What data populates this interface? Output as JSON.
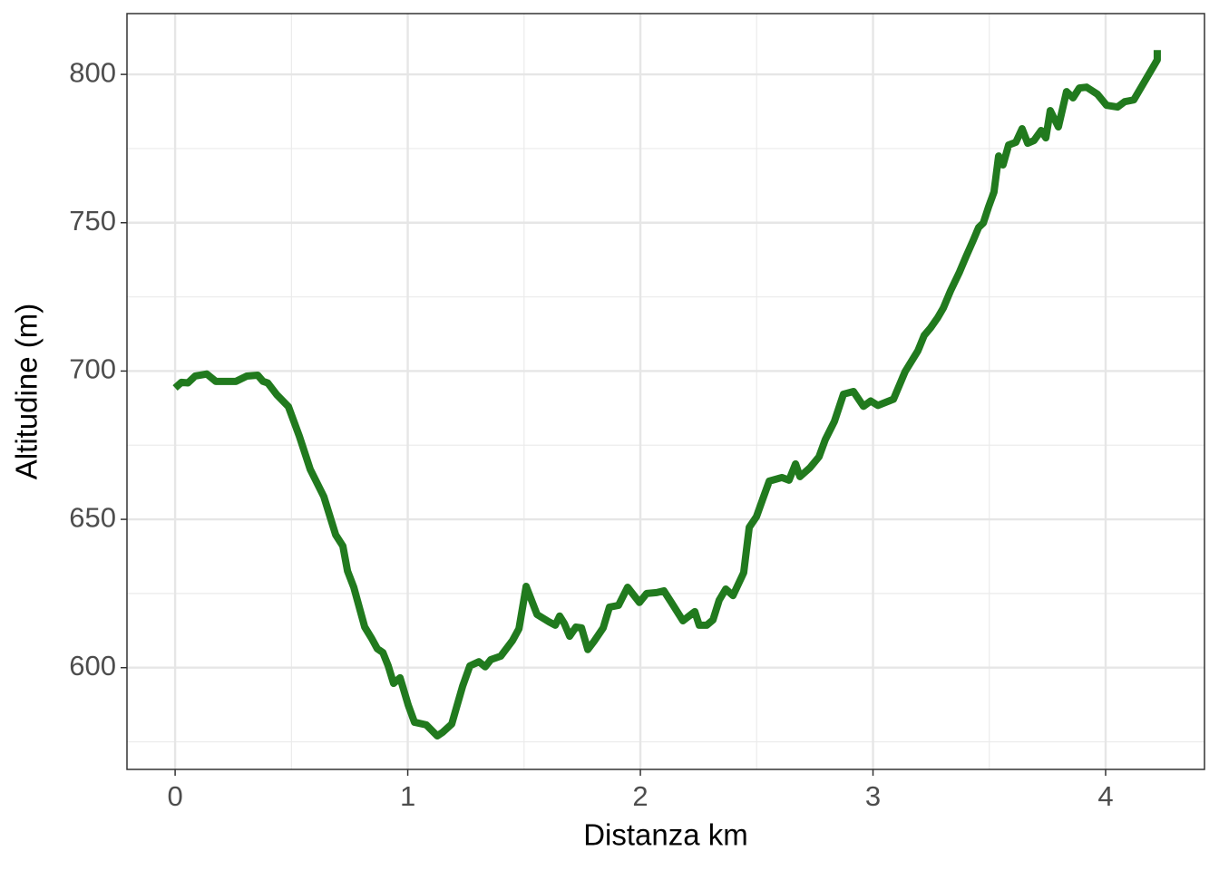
{
  "chart_data": {
    "type": "line",
    "xlabel": "Distanza km",
    "ylabel": "Altitudine (m)",
    "xlim": [
      -0.207,
      4.425
    ],
    "ylim": [
      565.7,
      820.5
    ],
    "xticks": [
      0,
      1,
      2,
      3,
      4
    ],
    "yticks": [
      600,
      650,
      700,
      750,
      800
    ],
    "grid": true,
    "series": [
      {
        "color": "#217a1e",
        "x": [
          0,
          0.027,
          0.055,
          0.086,
          0.136,
          0.175,
          0.261,
          0.308,
          0.355,
          0.378,
          0.398,
          0.437,
          0.487,
          0.534,
          0.581,
          0.639,
          0.69,
          0.721,
          0.741,
          0.768,
          0.815,
          0.846,
          0.869,
          0.893,
          0.916,
          0.939,
          0.967,
          1.002,
          1.029,
          1.08,
          1.127,
          1.15,
          1.189,
          1.236,
          1.267,
          1.306,
          1.333,
          1.357,
          1.4,
          1.45,
          1.478,
          1.509,
          1.556,
          1.606,
          1.634,
          1.653,
          1.673,
          1.696,
          1.723,
          1.747,
          1.774,
          1.801,
          1.84,
          1.867,
          1.906,
          1.945,
          1.996,
          2.027,
          2.07,
          2.101,
          2.133,
          2.183,
          2.234,
          2.253,
          2.285,
          2.312,
          2.339,
          2.367,
          2.398,
          2.444,
          2.468,
          2.499,
          2.53,
          2.554,
          2.608,
          2.639,
          2.667,
          2.686,
          2.729,
          2.768,
          2.795,
          2.834,
          2.873,
          2.916,
          2.959,
          2.99,
          3.021,
          3.088,
          3.138,
          3.193,
          3.22,
          3.247,
          3.279,
          3.302,
          3.333,
          3.372,
          3.4,
          3.431,
          3.454,
          3.474,
          3.497,
          3.52,
          3.54,
          3.559,
          3.583,
          3.614,
          3.641,
          3.665,
          3.692,
          3.723,
          3.743,
          3.762,
          3.797,
          3.832,
          3.86,
          3.887,
          3.918,
          3.965,
          4.004,
          4.051,
          4.082,
          4.121,
          4.222,
          4.222
        ],
        "values": [
          694.3,
          696.2,
          696,
          698.3,
          699,
          696.5,
          696.5,
          698.3,
          698.6,
          696.5,
          696,
          692,
          688,
          678,
          666.8,
          657.7,
          644.8,
          641,
          632.6,
          627.1,
          613.7,
          609.7,
          606.4,
          605.1,
          600.6,
          594.7,
          596.6,
          587.4,
          581.6,
          580.7,
          577,
          578.2,
          581,
          593.8,
          600.6,
          602,
          600.3,
          602.7,
          603.9,
          609.1,
          613.1,
          627.4,
          617.9,
          615.5,
          614.3,
          617.4,
          614.9,
          610.6,
          613.7,
          613.4,
          606.1,
          608.9,
          613.4,
          620.4,
          621,
          627.1,
          622,
          625,
          625.3,
          625.9,
          622,
          615.8,
          618.9,
          614.3,
          614.3,
          616.1,
          622.8,
          626.5,
          624.3,
          632,
          647.3,
          650.9,
          657.7,
          662.9,
          664.1,
          663.2,
          668.7,
          664.4,
          667.4,
          671.1,
          676.9,
          683,
          692.2,
          693.1,
          688.1,
          689.9,
          688.4,
          690.5,
          699.8,
          706.8,
          712,
          714.5,
          718.1,
          721.2,
          727,
          733.4,
          738.6,
          744.1,
          748.4,
          749.9,
          755.4,
          760.3,
          772.5,
          769.5,
          776.2,
          777.1,
          781.7,
          776.8,
          777.7,
          781.1,
          778.6,
          787.8,
          782.3,
          794.2,
          792.1,
          795.4,
          795.7,
          793.3,
          789.6,
          789,
          790.8,
          791.4,
          804.9,
          808.2
        ]
      }
    ]
  }
}
